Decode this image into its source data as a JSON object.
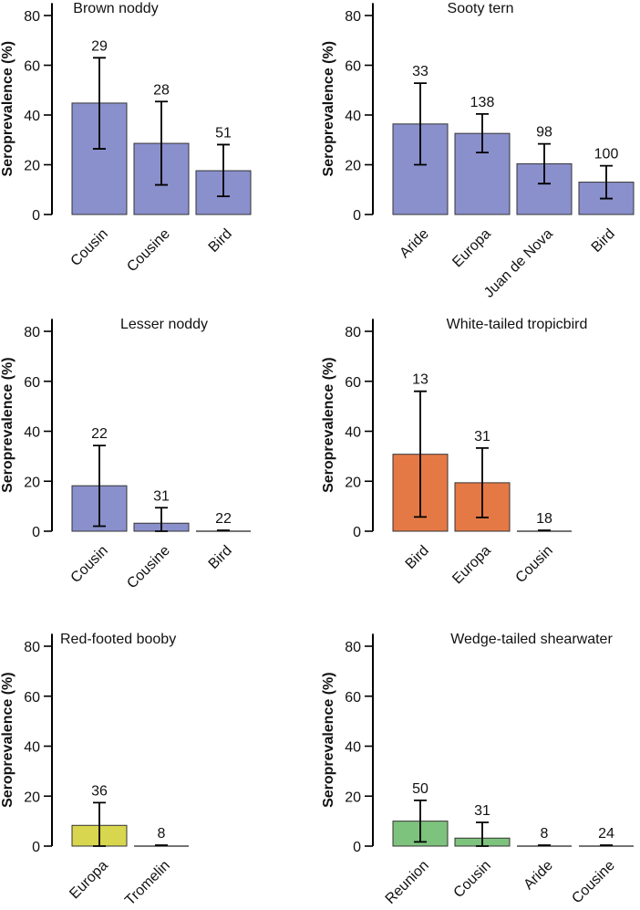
{
  "colors": {
    "blue": "#8a90cc",
    "orange": "#e57946",
    "yellow": "#d8d54e",
    "green": "#7dc27d"
  },
  "chart_data": [
    {
      "type": "bar",
      "title": "Brown noddy",
      "ylabel": "Seroprevalence (%)",
      "ylim": [
        0,
        85
      ],
      "yticks": [
        "0",
        "20",
        "40",
        "60",
        "80"
      ],
      "color": "blue",
      "categories": [
        "Cousin",
        "Cousine",
        "Bird"
      ],
      "values": [
        44.8,
        28.6,
        17.6
      ],
      "err_low": [
        26.4,
        11.9,
        7.3
      ],
      "err_high": [
        63,
        45.4,
        28.1
      ],
      "n": [
        "29",
        "28",
        "51"
      ]
    },
    {
      "type": "bar",
      "title": "Sooty tern",
      "ylabel": "Seroprevalence (%)",
      "ylim": [
        0,
        85
      ],
      "yticks": [
        "0",
        "20",
        "40",
        "60",
        "80"
      ],
      "color": "blue",
      "categories": [
        "Aride",
        "Europa",
        "Juan de Nova",
        "Bird"
      ],
      "values": [
        36.4,
        32.6,
        20.4,
        13
      ],
      "err_low": [
        20,
        24.9,
        12.4,
        6.4
      ],
      "err_high": [
        52.8,
        40.4,
        28.4,
        19.6
      ],
      "n": [
        "33",
        "138",
        "98",
        "100"
      ]
    },
    {
      "type": "bar",
      "title": "Lesser noddy",
      "ylabel": "Seroprevalence (%)",
      "ylim": [
        0,
        85
      ],
      "yticks": [
        "0",
        "20",
        "40",
        "60",
        "80"
      ],
      "color": "blue",
      "categories": [
        "Cousin",
        "Cousine",
        "Bird"
      ],
      "values": [
        18.2,
        3.2,
        0.3
      ],
      "err_low": [
        2,
        0,
        0
      ],
      "err_high": [
        34.3,
        9.4,
        0.3
      ],
      "n": [
        "22",
        "31",
        "22"
      ]
    },
    {
      "type": "bar",
      "title": "White-tailed tropicbird",
      "ylabel": "Seroprevalence (%)",
      "ylim": [
        0,
        85
      ],
      "yticks": [
        "0",
        "20",
        "40",
        "60",
        "80"
      ],
      "color": "orange",
      "categories": [
        "Bird",
        "Europa",
        "Cousin"
      ],
      "values": [
        30.8,
        19.4,
        0.3
      ],
      "err_low": [
        5.7,
        5.5,
        0
      ],
      "err_high": [
        56,
        33.3,
        0.3
      ],
      "n": [
        "13",
        "31",
        "18"
      ]
    },
    {
      "type": "bar",
      "title": "Red-footed booby",
      "ylabel": "Seroprevalence (%)",
      "ylim": [
        0,
        85
      ],
      "yticks": [
        "0",
        "20",
        "40",
        "60",
        "80"
      ],
      "color": "yellow",
      "categories": [
        "Europa",
        "Tromelin"
      ],
      "values": [
        8.3,
        0.3
      ],
      "err_low": [
        0,
        0
      ],
      "err_high": [
        17.4,
        0.3
      ],
      "n": [
        "36",
        "8"
      ]
    },
    {
      "type": "bar",
      "title": "Wedge-tailed shearwater",
      "ylabel": "Seroprevalence (%)",
      "ylim": [
        0,
        85
      ],
      "yticks": [
        "0",
        "20",
        "40",
        "60",
        "80"
      ],
      "color": "green",
      "categories": [
        "Reunion",
        "Cousin",
        "Aride",
        "Cousine"
      ],
      "values": [
        10,
        3.2,
        0.3,
        0.3
      ],
      "err_low": [
        1.7,
        0,
        0,
        0
      ],
      "err_high": [
        18.3,
        9.5,
        0.3,
        0.3
      ],
      "n": [
        "50",
        "31",
        "8",
        "24"
      ]
    }
  ]
}
